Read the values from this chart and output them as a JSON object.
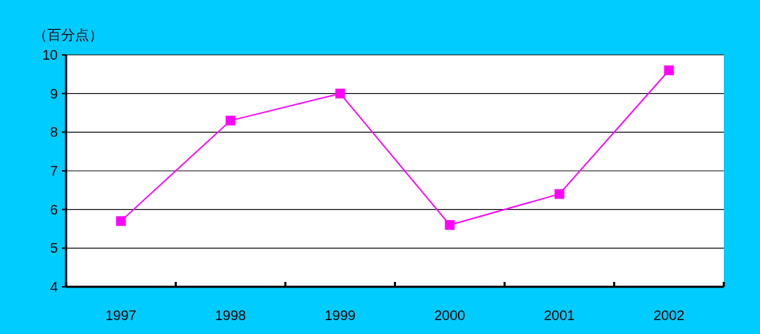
{
  "chart_data": {
    "type": "line",
    "ylabel": "（百分点）",
    "categories": [
      "1997",
      "1998",
      "1999",
      "2000",
      "2001",
      "2002"
    ],
    "series": [
      {
        "color": "#ff00ff",
        "values": [
          5.7,
          8.3,
          9.0,
          5.6,
          6.4,
          9.6
        ]
      }
    ],
    "ylim": [
      4,
      10
    ],
    "yticks": [
      4,
      5,
      6,
      7,
      8,
      9,
      10
    ],
    "grid": "y",
    "marker": "square",
    "line_style": "solid"
  }
}
